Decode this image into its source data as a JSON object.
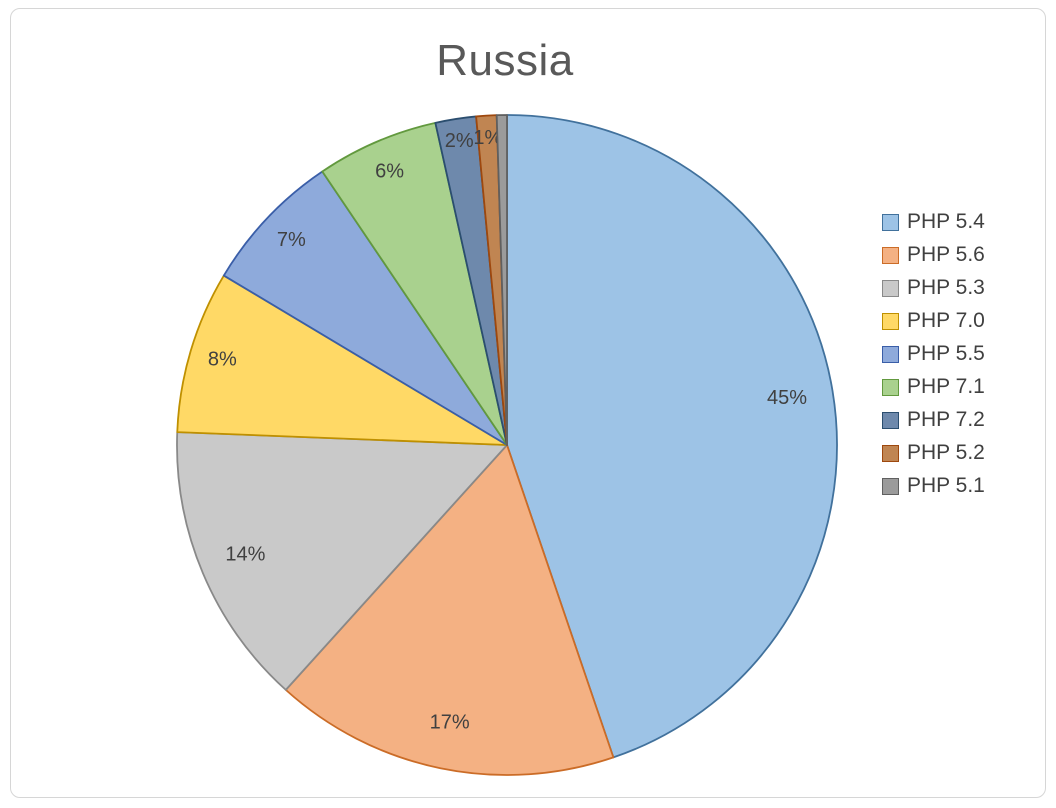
{
  "frame": {
    "background": "#FFFFFF",
    "border_color": "#D6D6D6"
  },
  "chart_data": {
    "type": "pie",
    "title": "Russia",
    "title_color": "#595959",
    "label_color": "#404040",
    "legend_position": "right",
    "start_angle_deg": 0,
    "direction": "clockwise",
    "categories": [
      "PHP 5.4",
      "PHP 5.6",
      "PHP 5.3",
      "PHP 7.0",
      "PHP 5.5",
      "PHP 7.1",
      "PHP 7.2",
      "PHP 5.2",
      "PHP 5.1"
    ],
    "values": [
      45,
      17,
      14,
      8,
      7,
      6,
      2,
      1,
      0.5
    ],
    "percent_labels": [
      "45%",
      "17%",
      "14%",
      "8%",
      "7%",
      "6%",
      "2%",
      "1%",
      ""
    ],
    "colors": [
      {
        "fill": "#9DC3E6",
        "stroke": "#41719C"
      },
      {
        "fill": "#F4B183",
        "stroke": "#CB6C27"
      },
      {
        "fill": "#C9C9C9",
        "stroke": "#898989"
      },
      {
        "fill": "#FFD966",
        "stroke": "#BF9000"
      },
      {
        "fill": "#8EAADB",
        "stroke": "#3A5EA8"
      },
      {
        "fill": "#A9D18E",
        "stroke": "#62993E"
      },
      {
        "fill": "#6E89AC",
        "stroke": "#2B4E6F"
      },
      {
        "fill": "#C08552",
        "stroke": "#9E480E"
      },
      {
        "fill": "#9B9B9B",
        "stroke": "#606060"
      }
    ]
  }
}
